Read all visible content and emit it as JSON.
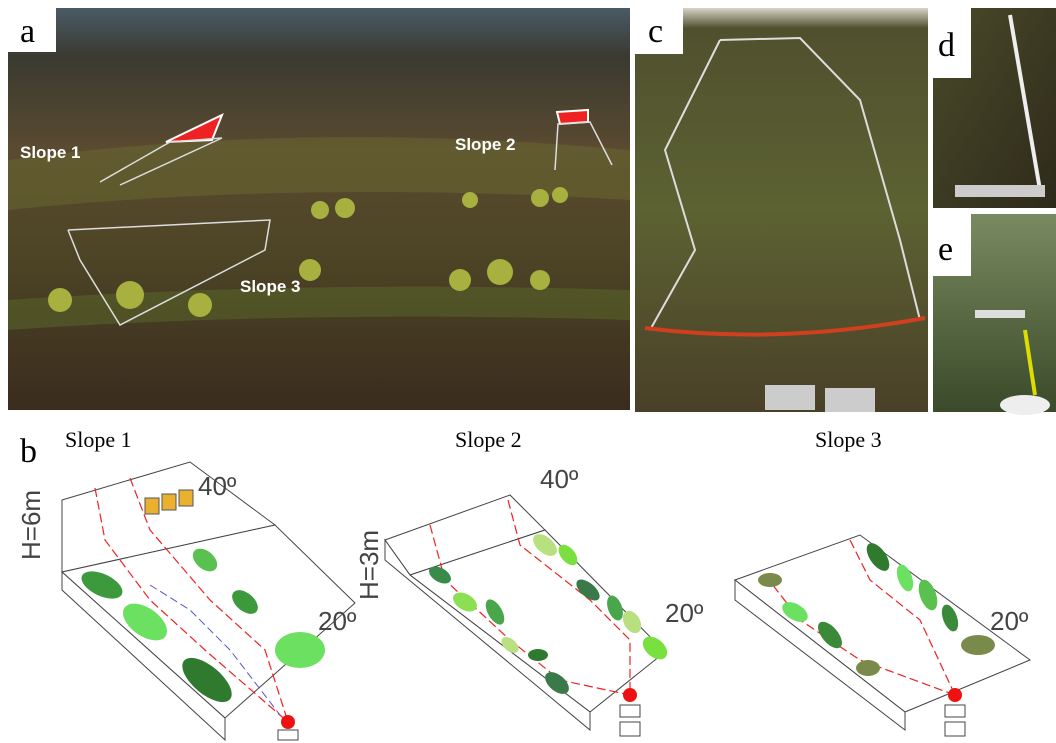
{
  "panels": {
    "a": {
      "label": "a",
      "annotations": [
        "Slope 1",
        "Slope 2",
        "Slope 3"
      ]
    },
    "b": {
      "label": "b",
      "diagrams": [
        {
          "title": "Slope 1",
          "height": "H=6m",
          "upper_angle": "40º",
          "lower_angle": "20º"
        },
        {
          "title": "Slope 2",
          "height": "H=3m",
          "upper_angle": "40º",
          "lower_angle": "20º"
        },
        {
          "title": "Slope 3",
          "lower_angle": "20º"
        }
      ]
    },
    "c": {
      "label": "c"
    },
    "d": {
      "label": "d"
    },
    "e": {
      "label": "e"
    }
  }
}
